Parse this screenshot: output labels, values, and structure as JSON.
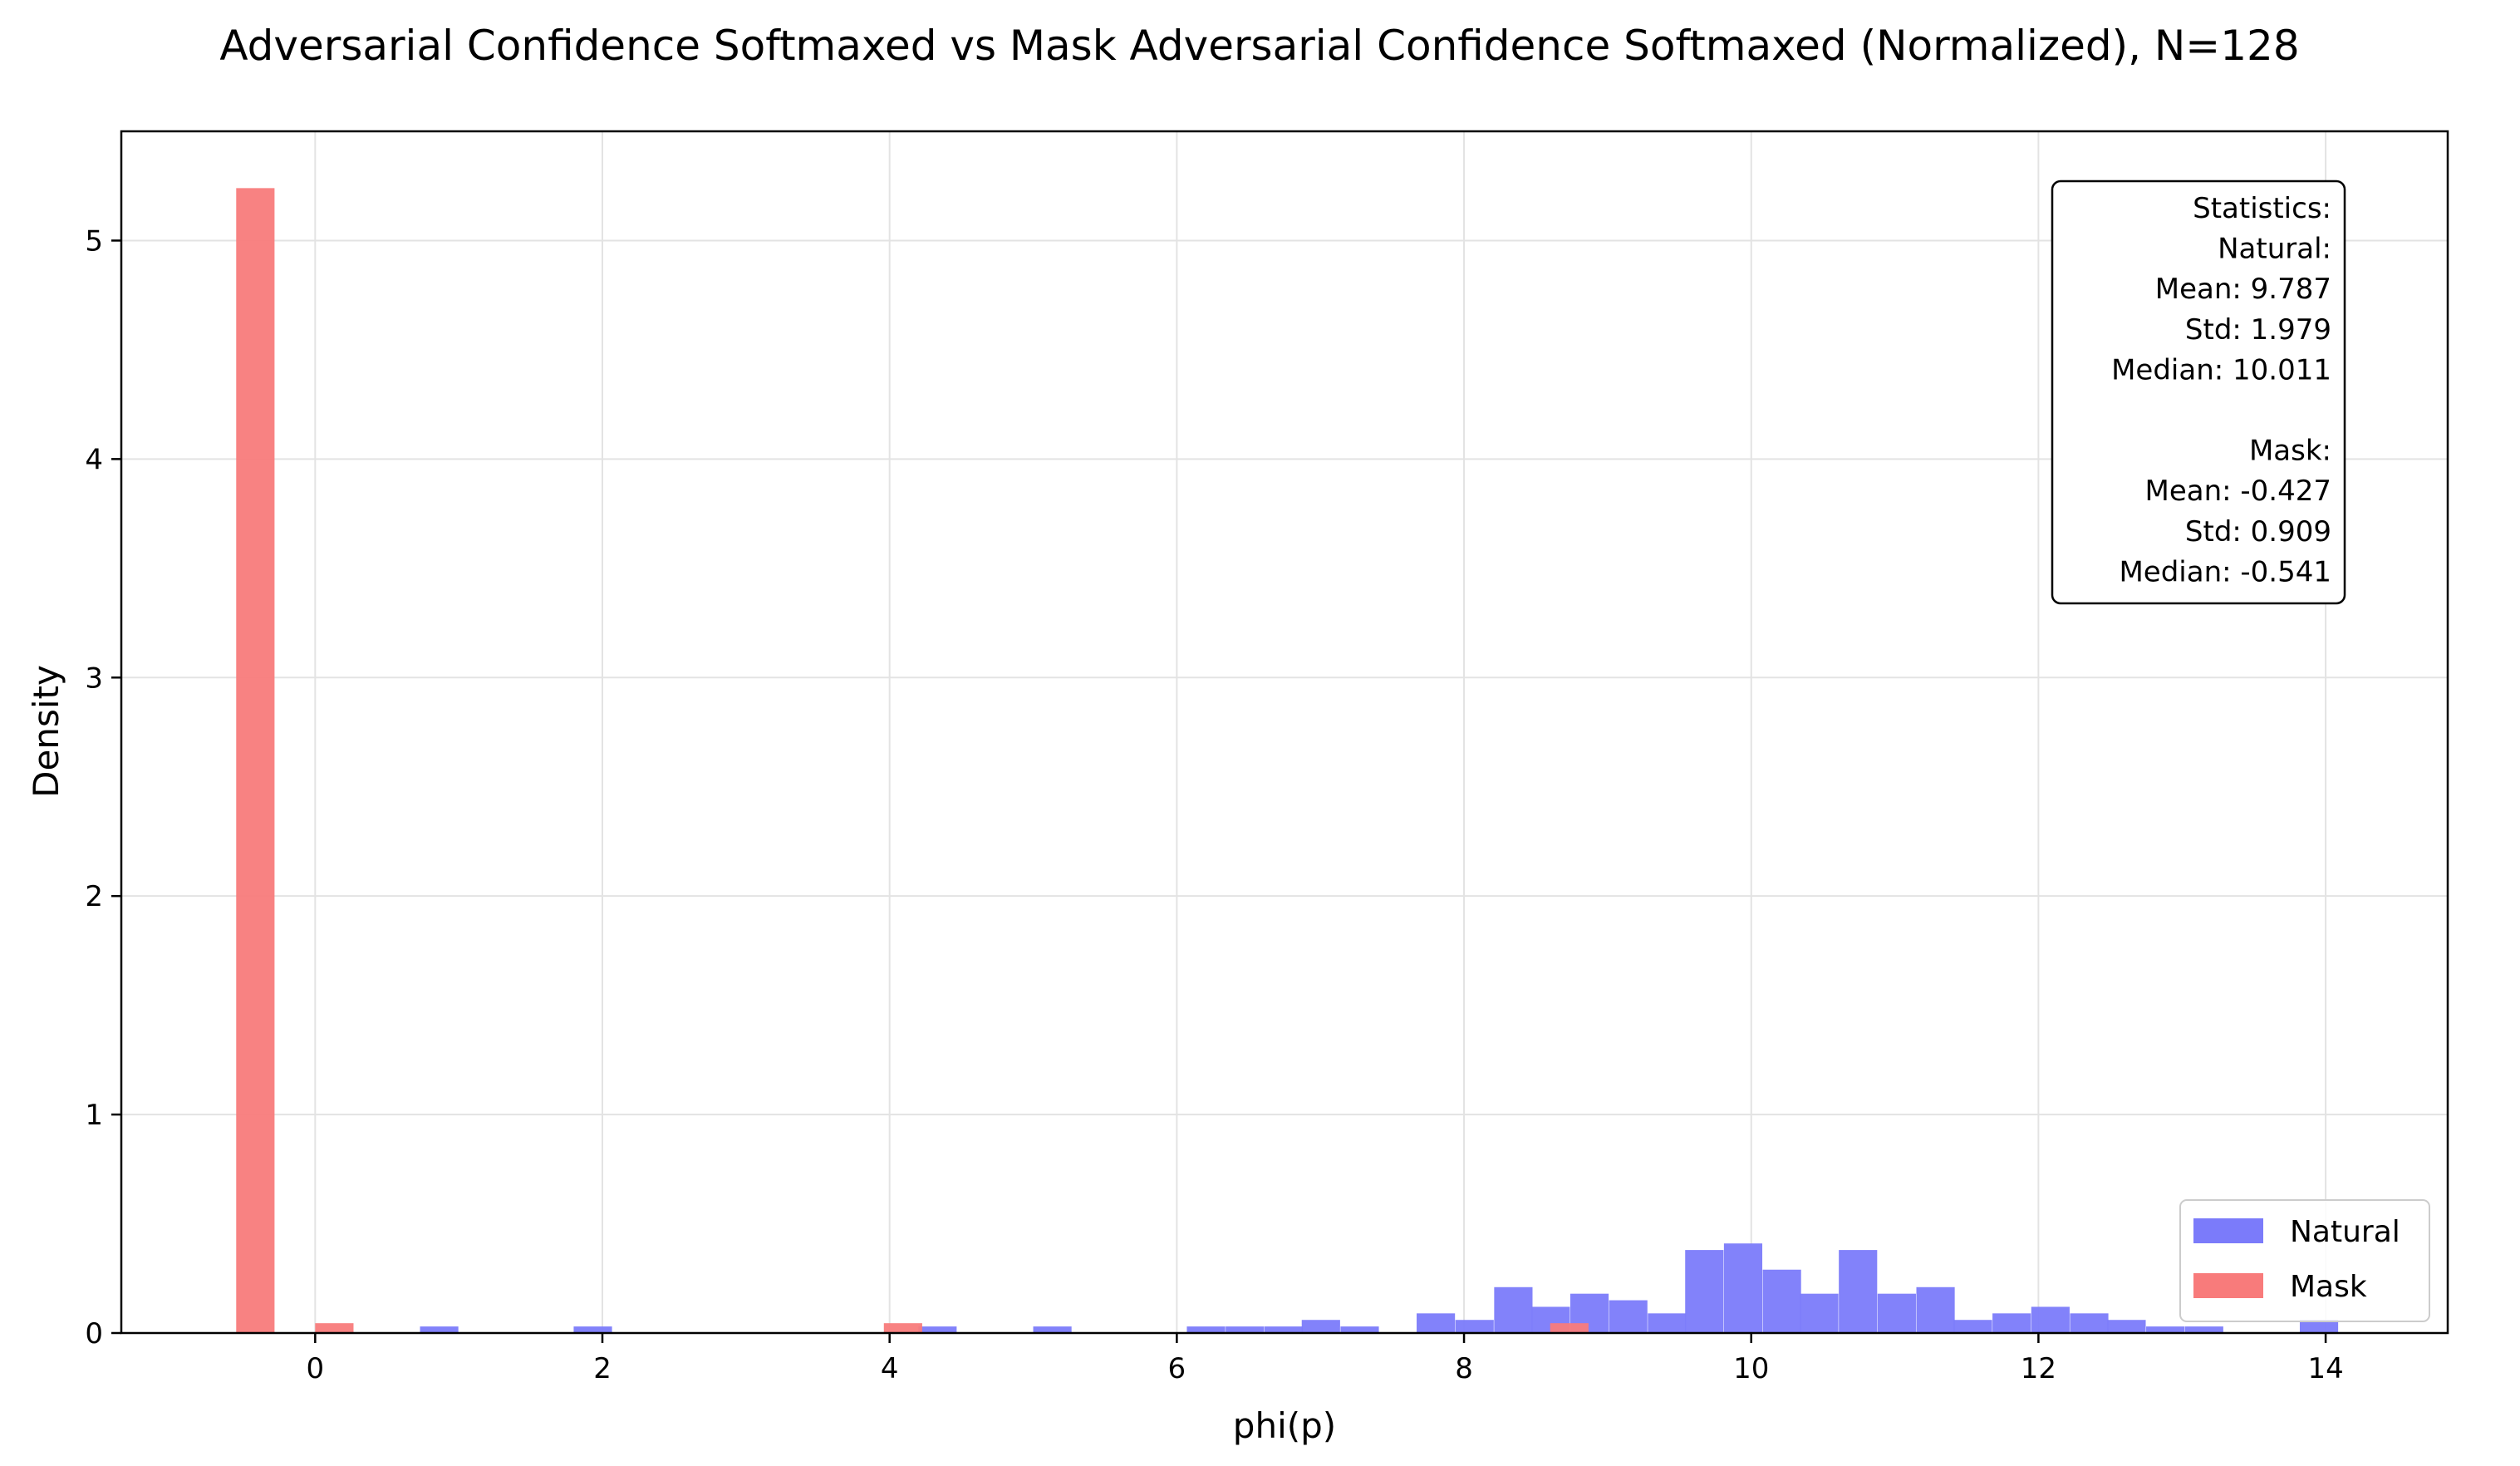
{
  "chart_data": {
    "type": "bar",
    "title": "Adversarial Confidence Softmaxed vs Mask Adversarial Confidence Softmaxed (Normalized), N=128",
    "xlabel": "phi(p)",
    "ylabel": "Density",
    "xlim": [
      -1.35,
      14.85
    ],
    "ylim": [
      0,
      5.5
    ],
    "xticks": [
      0,
      2,
      4,
      6,
      8,
      10,
      12,
      14
    ],
    "yticks": [
      0,
      1,
      2,
      3,
      4,
      5
    ],
    "grid": true,
    "bin_width": 0.267,
    "series": [
      {
        "name": "Natural",
        "color": "#7b7bfa",
        "bins": [
          {
            "x0": 0.73,
            "value": 0.03
          },
          {
            "x0": 1.8,
            "value": 0.03
          },
          {
            "x0": 4.2,
            "value": 0.03
          },
          {
            "x0": 5.0,
            "value": 0.03
          },
          {
            "x0": 6.07,
            "value": 0.03
          },
          {
            "x0": 6.34,
            "value": 0.03
          },
          {
            "x0": 6.61,
            "value": 0.03
          },
          {
            "x0": 6.87,
            "value": 0.06
          },
          {
            "x0": 7.14,
            "value": 0.03
          },
          {
            "x0": 7.67,
            "value": 0.09
          },
          {
            "x0": 7.94,
            "value": 0.06
          },
          {
            "x0": 8.21,
            "value": 0.21
          },
          {
            "x0": 8.47,
            "value": 0.12
          },
          {
            "x0": 8.74,
            "value": 0.18
          },
          {
            "x0": 9.01,
            "value": 0.15
          },
          {
            "x0": 9.28,
            "value": 0.09
          },
          {
            "x0": 9.54,
            "value": 0.38
          },
          {
            "x0": 9.81,
            "value": 0.41
          },
          {
            "x0": 10.08,
            "value": 0.29
          },
          {
            "x0": 10.34,
            "value": 0.18
          },
          {
            "x0": 10.61,
            "value": 0.38
          },
          {
            "x0": 10.88,
            "value": 0.18
          },
          {
            "x0": 11.15,
            "value": 0.21
          },
          {
            "x0": 11.41,
            "value": 0.06
          },
          {
            "x0": 11.68,
            "value": 0.09
          },
          {
            "x0": 11.95,
            "value": 0.12
          },
          {
            "x0": 12.22,
            "value": 0.09
          },
          {
            "x0": 12.48,
            "value": 0.06
          },
          {
            "x0": 12.75,
            "value": 0.03
          },
          {
            "x0": 13.02,
            "value": 0.03
          },
          {
            "x0": 13.82,
            "value": 0.06
          }
        ]
      },
      {
        "name": "Mask",
        "color": "#f87b7b",
        "bins": [
          {
            "x0": -0.55,
            "value": 5.24
          },
          {
            "x0": 0.0,
            "value": 0.045
          },
          {
            "x0": -0.0,
            "value": 0.0
          },
          {
            "x0": 3.96,
            "value": 0.045
          },
          {
            "x0": 8.6,
            "value": 0.045
          }
        ]
      }
    ],
    "legend": {
      "position": "bottom-right",
      "entries": [
        {
          "label": "Natural",
          "color": "#7b7bfa"
        },
        {
          "label": "Mask",
          "color": "#f87b7b"
        }
      ]
    },
    "stats_box": {
      "position": "top-right",
      "lines": [
        "Statistics:",
        "Natural:",
        "Mean: 9.787",
        "Std: 1.979",
        "Median: 10.011",
        "",
        "Mask:",
        "Mean: -0.427",
        "Std: 0.909",
        "Median: -0.541"
      ]
    }
  }
}
